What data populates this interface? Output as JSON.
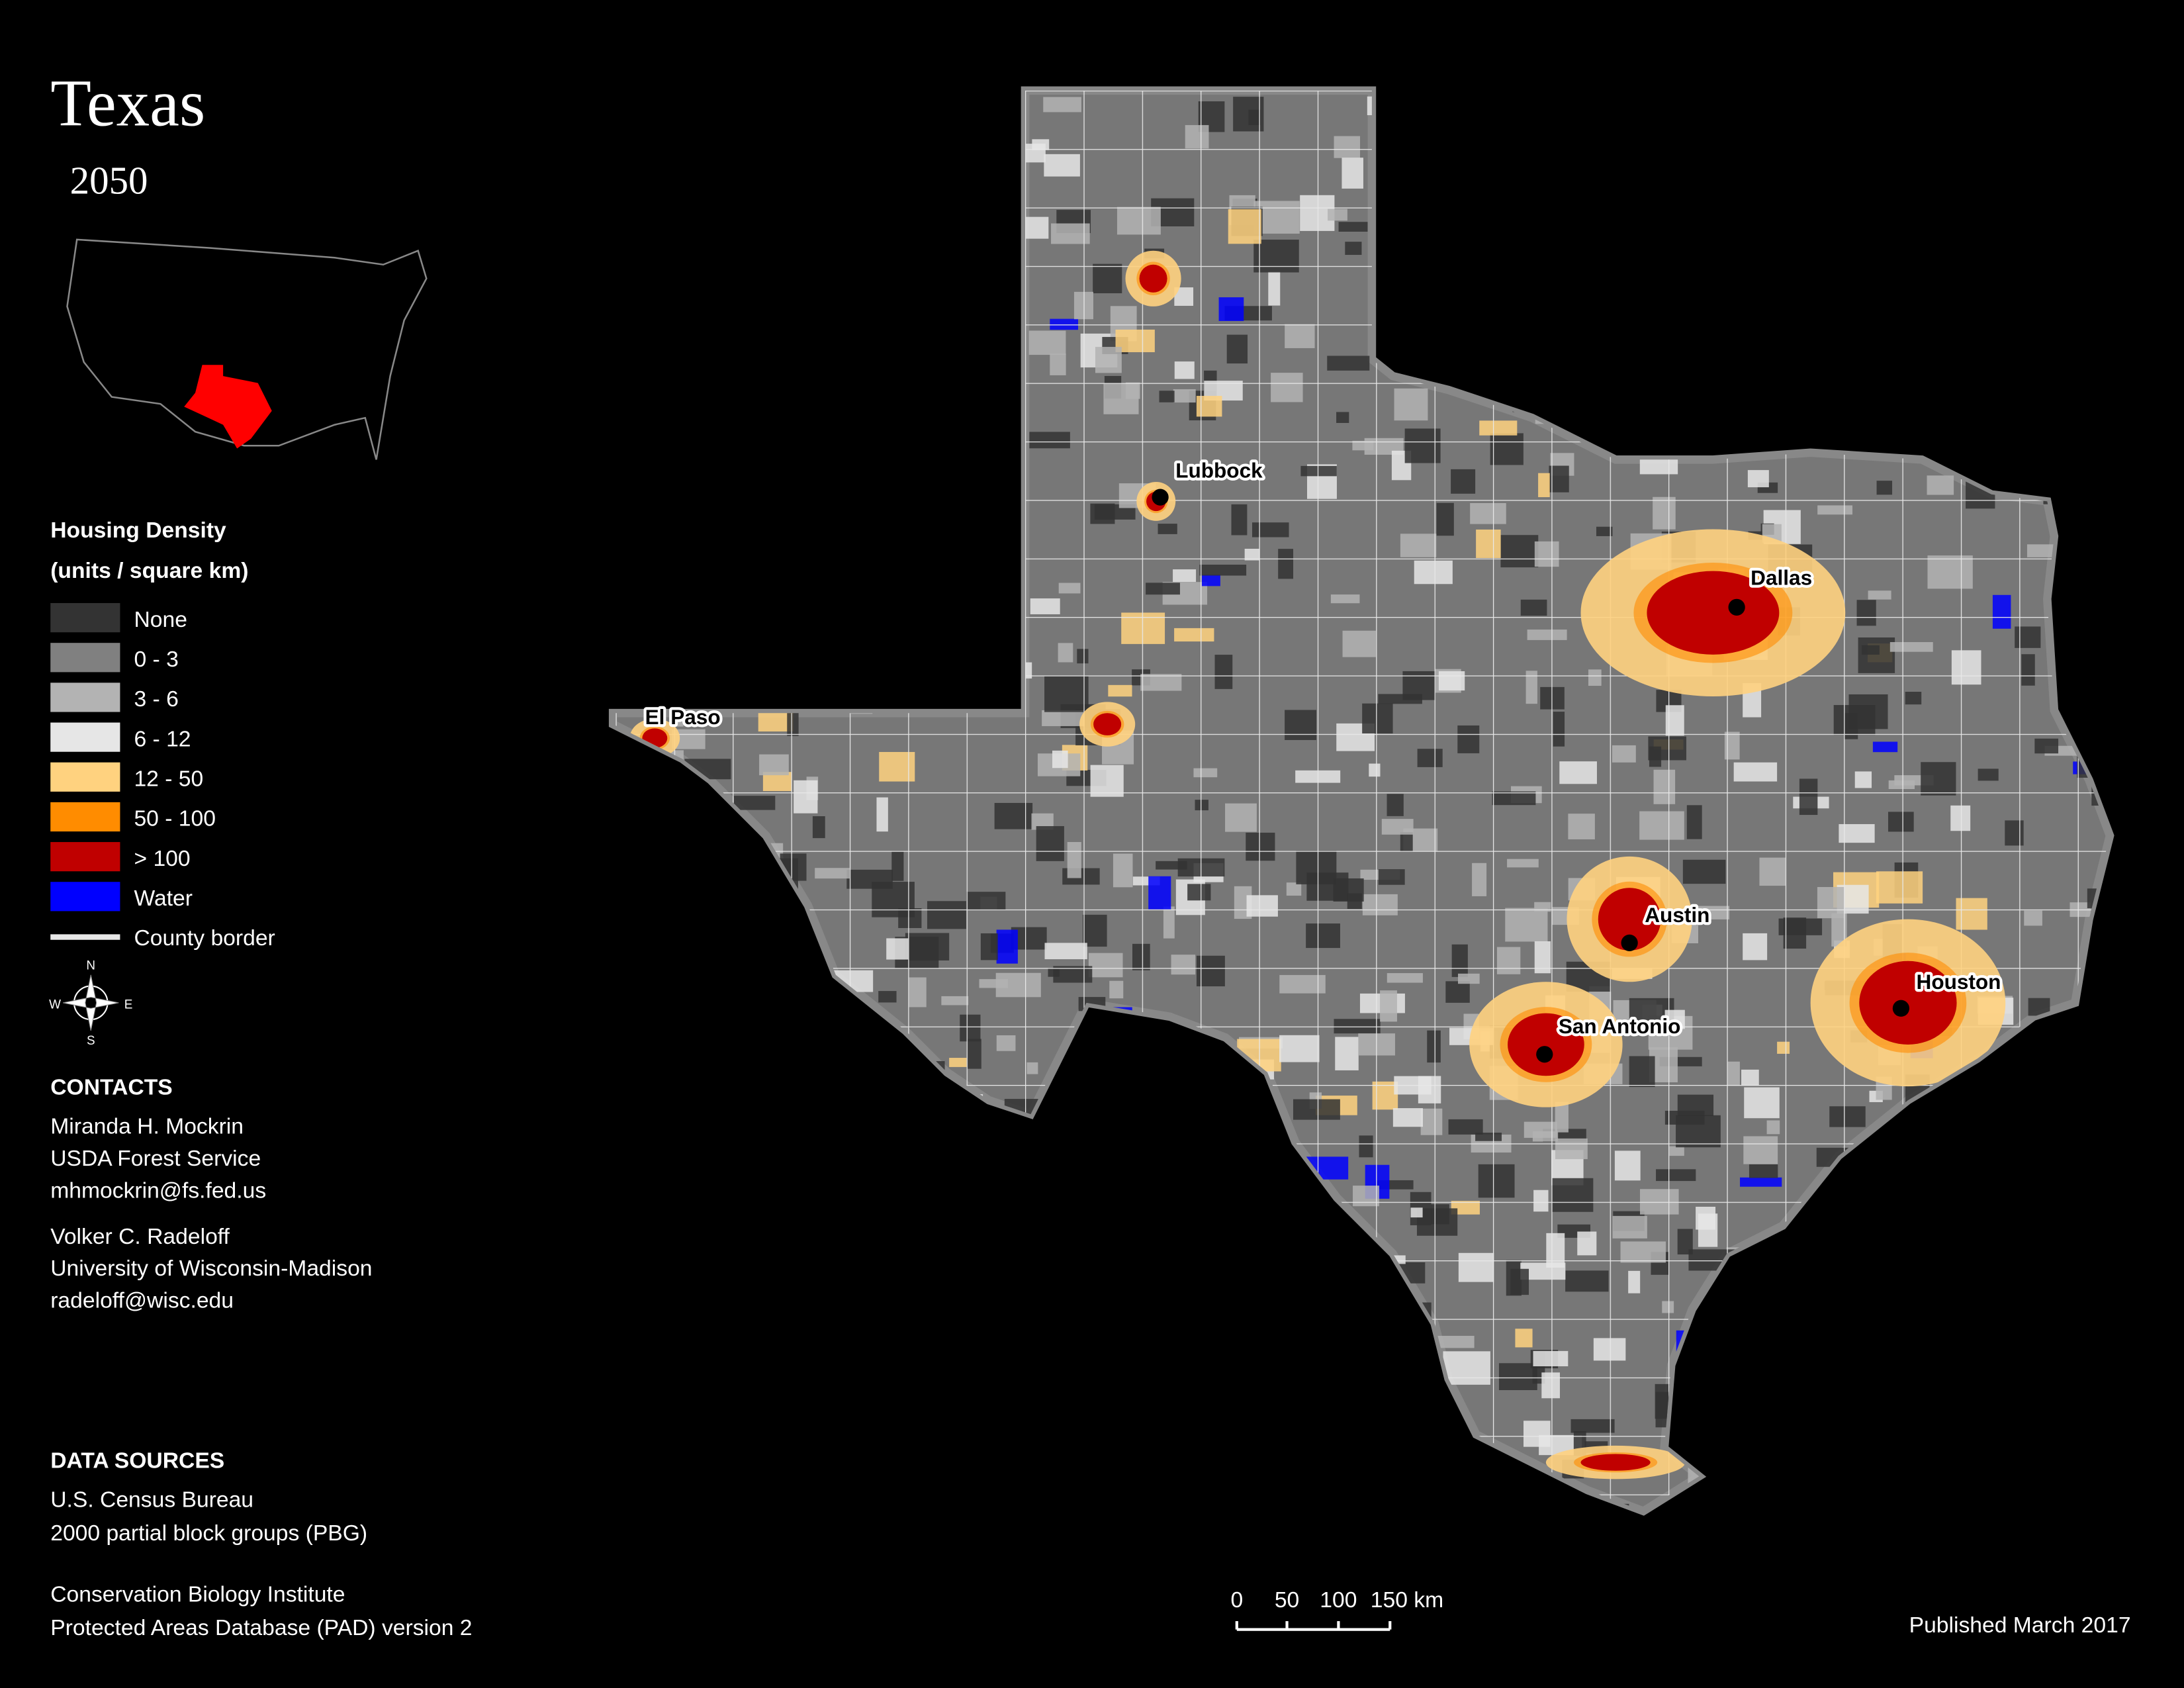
{
  "title": "Texas",
  "subtitle": "2050",
  "legend": {
    "title": "Housing Density",
    "subtitle": "(units / square km)",
    "items": [
      {
        "label": "None",
        "color": "#333333"
      },
      {
        "label": "0 - 3",
        "color": "#808080"
      },
      {
        "label": "3 - 6",
        "color": "#b3b3b3"
      },
      {
        "label": "6 - 12",
        "color": "#e6e6e6"
      },
      {
        "label": "12 - 50",
        "color": "#ffd27f"
      },
      {
        "label": "50 - 100",
        "color": "#ff8c00"
      },
      {
        "label": "> 100",
        "color": "#c00000"
      },
      {
        "label": "Water",
        "color": "#0000ff"
      },
      {
        "label": "County border",
        "color": "#e8e8e8",
        "symbol": "line"
      }
    ]
  },
  "cities": [
    "Lubbock",
    "El Paso",
    "Dallas",
    "Austin",
    "San Antonio",
    "Houston"
  ],
  "compass": [
    "N",
    "E",
    "S",
    "W"
  ],
  "contacts": {
    "heading": "CONTACTS",
    "people": [
      [
        "Miranda H. Mockrin",
        "USDA Forest Service",
        "mhmockrin@fs.fed.us"
      ],
      [
        "Volker C. Radeloff",
        "University of Wisconsin-Madison",
        "radeloff@wisc.edu"
      ]
    ]
  },
  "sources": {
    "heading": "DATA SOURCES",
    "groups": [
      [
        "U.S. Census Bureau",
        "2000 partial block groups (PBG)"
      ],
      [
        "Conservation Biology Institute",
        "Protected Areas Database (PAD) version 2"
      ]
    ]
  },
  "scale_bar": [
    "0",
    "50",
    "100",
    "150 km"
  ],
  "published": "Published March 2017"
}
